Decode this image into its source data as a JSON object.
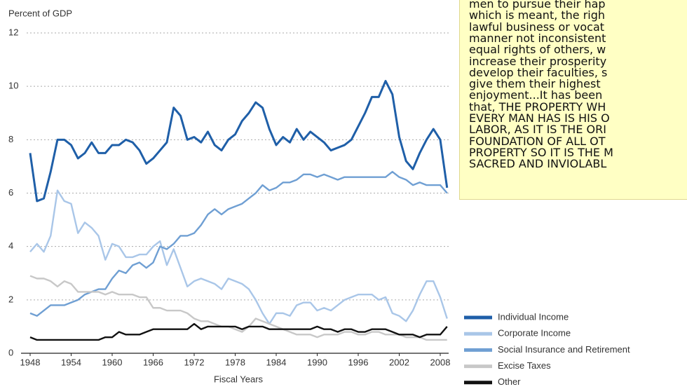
{
  "chart_data": {
    "type": "line",
    "ylabel": "Percent of GDP",
    "xlabel": "Fiscal Years",
    "x": [
      1948,
      1949,
      1950,
      1951,
      1952,
      1953,
      1954,
      1955,
      1956,
      1957,
      1958,
      1959,
      1960,
      1961,
      1962,
      1963,
      1964,
      1965,
      1966,
      1967,
      1968,
      1969,
      1970,
      1971,
      1972,
      1973,
      1974,
      1975,
      1976,
      1977,
      1978,
      1979,
      1980,
      1981,
      1982,
      1983,
      1984,
      1985,
      1986,
      1987,
      1988,
      1989,
      1990,
      1991,
      1992,
      1993,
      1994,
      1995,
      1996,
      1997,
      1998,
      1999,
      2000,
      2001,
      2002,
      2003,
      2004,
      2005,
      2006,
      2007,
      2008,
      2009
    ],
    "xlim": [
      1948,
      2010
    ],
    "xticks": [
      1948,
      1954,
      1960,
      1966,
      1972,
      1978,
      1984,
      1990,
      1996,
      2002,
      2008
    ],
    "ylim": [
      0,
      12
    ],
    "yticks": [
      0,
      2,
      4,
      6,
      8,
      10,
      12
    ],
    "grid": true,
    "series": [
      {
        "name": "Individual Income",
        "color": "#1f5fa8",
        "values": [
          7.5,
          5.7,
          5.8,
          6.8,
          8.0,
          8.0,
          7.8,
          7.3,
          7.5,
          7.9,
          7.5,
          7.5,
          7.8,
          7.8,
          8.0,
          7.9,
          7.6,
          7.1,
          7.3,
          7.6,
          7.9,
          9.2,
          8.9,
          8.0,
          8.1,
          7.9,
          8.3,
          7.8,
          7.6,
          8.0,
          8.2,
          8.7,
          9.0,
          9.4,
          9.2,
          8.4,
          7.8,
          8.1,
          7.9,
          8.4,
          8.0,
          8.3,
          8.1,
          7.9,
          7.6,
          7.7,
          7.8,
          8.0,
          8.5,
          9.0,
          9.6,
          9.6,
          10.2,
          9.7,
          8.1,
          7.2,
          6.9,
          7.5,
          8.0,
          8.4,
          8.0,
          6.2
        ]
      },
      {
        "name": "Corporate Income",
        "color": "#a9c6e8",
        "values": [
          3.8,
          4.1,
          3.8,
          4.4,
          6.1,
          5.7,
          5.6,
          4.5,
          4.9,
          4.7,
          4.4,
          3.5,
          4.1,
          4.0,
          3.6,
          3.6,
          3.7,
          3.7,
          4.0,
          4.2,
          3.3,
          3.9,
          3.2,
          2.5,
          2.7,
          2.8,
          2.7,
          2.6,
          2.4,
          2.8,
          2.7,
          2.6,
          2.4,
          2.0,
          1.5,
          1.1,
          1.5,
          1.5,
          1.4,
          1.8,
          1.9,
          1.9,
          1.6,
          1.7,
          1.6,
          1.8,
          2.0,
          2.1,
          2.2,
          2.2,
          2.2,
          2.0,
          2.1,
          1.5,
          1.4,
          1.2,
          1.6,
          2.2,
          2.7,
          2.7,
          2.1,
          1.3
        ]
      },
      {
        "name": "Social Insurance and Retirement",
        "color": "#6f9fd3",
        "values": [
          1.5,
          1.4,
          1.6,
          1.8,
          1.8,
          1.8,
          1.9,
          2.0,
          2.2,
          2.3,
          2.4,
          2.4,
          2.8,
          3.1,
          3.0,
          3.3,
          3.4,
          3.2,
          3.4,
          4.0,
          3.9,
          4.1,
          4.4,
          4.4,
          4.5,
          4.8,
          5.2,
          5.4,
          5.2,
          5.4,
          5.5,
          5.6,
          5.8,
          6.0,
          6.3,
          6.1,
          6.2,
          6.4,
          6.4,
          6.5,
          6.7,
          6.7,
          6.6,
          6.7,
          6.6,
          6.5,
          6.6,
          6.6,
          6.6,
          6.6,
          6.6,
          6.6,
          6.6,
          6.8,
          6.6,
          6.5,
          6.3,
          6.4,
          6.3,
          6.3,
          6.3,
          6.0
        ]
      },
      {
        "name": "Excise Taxes",
        "color": "#c8c8c8",
        "values": [
          2.9,
          2.8,
          2.8,
          2.7,
          2.5,
          2.7,
          2.6,
          2.3,
          2.3,
          2.3,
          2.3,
          2.2,
          2.3,
          2.2,
          2.2,
          2.2,
          2.1,
          2.1,
          1.7,
          1.7,
          1.6,
          1.6,
          1.6,
          1.5,
          1.3,
          1.2,
          1.2,
          1.1,
          1.0,
          1.0,
          0.9,
          0.8,
          1.0,
          1.3,
          1.2,
          1.1,
          1.0,
          0.9,
          0.8,
          0.7,
          0.7,
          0.7,
          0.6,
          0.7,
          0.7,
          0.7,
          0.8,
          0.8,
          0.7,
          0.7,
          0.8,
          0.8,
          0.7,
          0.7,
          0.7,
          0.6,
          0.6,
          0.6,
          0.5,
          0.5,
          0.5,
          0.5
        ]
      },
      {
        "name": "Other",
        "color": "#111111",
        "values": [
          0.6,
          0.5,
          0.5,
          0.5,
          0.5,
          0.5,
          0.5,
          0.5,
          0.5,
          0.5,
          0.5,
          0.6,
          0.6,
          0.8,
          0.7,
          0.7,
          0.7,
          0.8,
          0.9,
          0.9,
          0.9,
          0.9,
          0.9,
          0.9,
          1.1,
          0.9,
          1.0,
          1.0,
          1.0,
          1.0,
          1.0,
          0.9,
          1.0,
          1.0,
          1.0,
          0.9,
          0.9,
          0.9,
          0.9,
          0.9,
          0.9,
          0.9,
          1.0,
          0.9,
          0.9,
          0.8,
          0.9,
          0.9,
          0.8,
          0.8,
          0.9,
          0.9,
          0.9,
          0.8,
          0.7,
          0.7,
          0.7,
          0.6,
          0.7,
          0.7,
          0.7,
          1.0
        ]
      }
    ]
  },
  "note": {
    "lines": [
      "men to pursue their hap",
      "which is meant, the righ",
      "lawful business or vocat",
      "manner not inconsistent",
      "equal rights of others, w",
      "increase their prosperity",
      "develop their faculties, s",
      "give them their highest",
      "enjoyment...It has been",
      "that, THE PROPERTY WH",
      "EVERY MAN HAS IS HIS O",
      "LABOR, AS IT IS THE ORI",
      "FOUNDATION OF ALL OT",
      "PROPERTY SO IT IS THE M",
      "SACRED AND INVIOLABL"
    ]
  }
}
